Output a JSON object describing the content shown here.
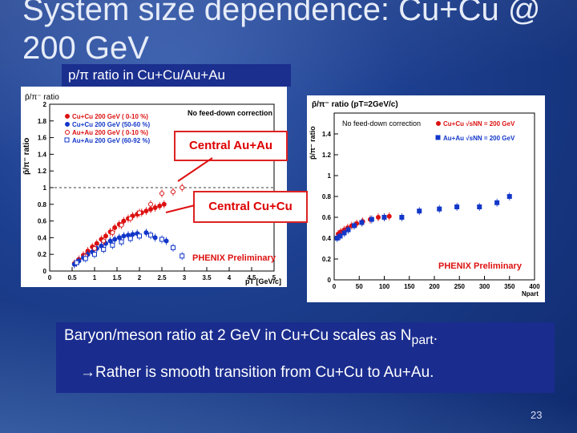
{
  "slide": {
    "title": "System size dependence: Cu+Cu @ 200 GeV",
    "caption": "p/π ratio in Cu+Cu/Au+Au",
    "annotation_au": "Central Au+Au",
    "annotation_cu": "Central Cu+Cu",
    "line1_a": "Baryon/meson ratio at 2 GeV in Cu+Cu scales as N",
    "line1_sub": "part",
    "line1_end": ".",
    "line2_arrow": "→",
    "line2": "Rather is smooth transition from Cu+Cu to Au+Au.",
    "slide_number": "23"
  },
  "left_plot": {
    "ylabel": "p̄/π⁻ ratio",
    "header": "p̄/π⁻ ratio",
    "note": "No feed-down correction",
    "legend": [
      "Cu+Cu 200 GeV ( 0-10 %)",
      "Cu+Cu 200 GeV (50-60 %)",
      "Au+Au 200 GeV ( 0-10 %)",
      "Au+Au 200 GeV (60-92 %)"
    ],
    "legend_colors": [
      "#d11",
      "#1237c9",
      "#d11",
      "#1237c9"
    ],
    "xticks": [
      "0",
      "0.5",
      "1",
      "1.5",
      "2",
      "2.5",
      "3",
      "3.5",
      "4",
      "4.5",
      "5"
    ],
    "yticks": [
      "0",
      "0.2",
      "0.4",
      "0.6",
      "0.8",
      "1",
      "1.2",
      "1.4",
      "1.6",
      "1.8",
      "2"
    ],
    "xlabel": "pT [GeV/c]",
    "prelim": "PHENIX Preliminary"
  },
  "right_plot": {
    "header": "p̄/π⁻ ratio (pT=2GeV/c)",
    "ylabel": "p̄/π⁻ ratio",
    "note": "No feed-down correction",
    "legend": [
      "Cu+Cu √sNN = 200 GeV",
      "Au+Au √sNN = 200 GeV"
    ],
    "legend_colors": [
      "#d11",
      "#1237c9"
    ],
    "xticks": [
      "0",
      "50",
      "100",
      "150",
      "200",
      "250",
      "300",
      "350",
      "400"
    ],
    "yticks": [
      "0",
      "0.2",
      "0.4",
      "0.6",
      "0.8",
      "1",
      "1.2",
      "1.4"
    ],
    "xlabel": "Npart",
    "prelim": "PHENIX Preliminary"
  },
  "chart_data": [
    {
      "type": "scatter",
      "xlim": [
        0,
        5
      ],
      "ylim": [
        0,
        2
      ],
      "series": [
        {
          "name": "Cu+Cu 200 GeV ( 0-10 %)",
          "x": [
            0.55,
            0.65,
            0.75,
            0.85,
            0.95,
            1.05,
            1.15,
            1.25,
            1.35,
            1.45,
            1.55,
            1.65,
            1.75,
            1.85,
            1.95,
            2.05,
            2.15,
            2.25,
            2.35,
            2.45,
            2.55
          ],
          "y": [
            0.09,
            0.14,
            0.19,
            0.24,
            0.29,
            0.33,
            0.38,
            0.42,
            0.47,
            0.52,
            0.56,
            0.6,
            0.63,
            0.66,
            0.68,
            0.7,
            0.72,
            0.74,
            0.76,
            0.78,
            0.8
          ]
        },
        {
          "name": "Cu+Cu 200 GeV (50-60 %)",
          "x": [
            0.55,
            0.65,
            0.75,
            0.85,
            0.95,
            1.05,
            1.15,
            1.25,
            1.35,
            1.45,
            1.55,
            1.65,
            1.75,
            1.85,
            1.95,
            2.15,
            2.35,
            2.6
          ],
          "y": [
            0.08,
            0.12,
            0.16,
            0.2,
            0.23,
            0.27,
            0.3,
            0.33,
            0.36,
            0.38,
            0.4,
            0.42,
            0.43,
            0.44,
            0.45,
            0.46,
            0.4,
            0.36
          ]
        },
        {
          "name": "Au+Au 200 GeV ( 0-10 %)",
          "x": [
            0.6,
            0.8,
            1.0,
            1.2,
            1.4,
            1.6,
            1.8,
            2.0,
            2.25,
            2.5,
            2.75,
            2.95
          ],
          "y": [
            0.1,
            0.18,
            0.27,
            0.36,
            0.46,
            0.55,
            0.63,
            0.7,
            0.8,
            0.93,
            0.95,
            1.0
          ]
        },
        {
          "name": "Au+Au 200 GeV (60-92 %)",
          "x": [
            0.6,
            0.8,
            1.0,
            1.2,
            1.4,
            1.6,
            1.8,
            2.0,
            2.25,
            2.5,
            2.75,
            2.95
          ],
          "y": [
            0.1,
            0.15,
            0.2,
            0.26,
            0.31,
            0.35,
            0.39,
            0.42,
            0.43,
            0.38,
            0.28,
            0.18
          ]
        }
      ]
    },
    {
      "type": "scatter",
      "xlim": [
        0,
        400
      ],
      "ylim": [
        0,
        1.6
      ],
      "series": [
        {
          "name": "Cu+Cu √sNN = 200 GeV",
          "x": [
            8,
            13,
            20,
            27,
            35,
            45,
            57,
            72,
            88,
            100,
            110
          ],
          "y": [
            0.44,
            0.46,
            0.48,
            0.5,
            0.52,
            0.54,
            0.56,
            0.58,
            0.6,
            0.6,
            0.61
          ]
        },
        {
          "name": "Au+Au √sNN = 200 GeV",
          "x": [
            6,
            12,
            20,
            28,
            40,
            55,
            75,
            100,
            135,
            170,
            210,
            245,
            290,
            325,
            350
          ],
          "y": [
            0.4,
            0.42,
            0.45,
            0.48,
            0.52,
            0.55,
            0.58,
            0.6,
            0.6,
            0.66,
            0.68,
            0.7,
            0.7,
            0.74,
            0.8
          ]
        }
      ]
    }
  ]
}
